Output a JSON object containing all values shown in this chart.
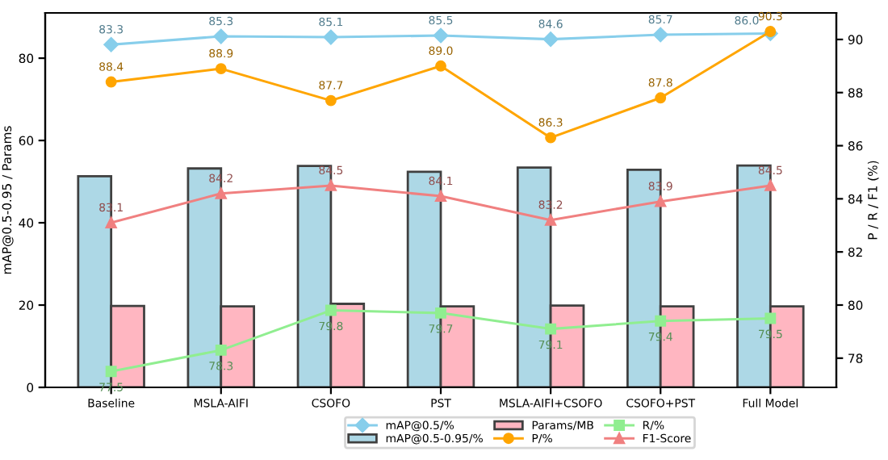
{
  "chart_data": {
    "type": "bar",
    "ylabel": "mAP@0.5-0.95 / Params",
    "y2label": "P / R / F1 (%)",
    "categories": [
      "Baseline",
      "MSLA-AIFI",
      "CSOFO",
      "PST",
      "MSLA-AIFI+CSOFO",
      "CSOFO+PST",
      "Full Model"
    ],
    "ylim": [
      0,
      91
    ],
    "yticks": [
      0,
      20,
      40,
      60,
      80
    ],
    "y2lim": [
      76.9,
      91
    ],
    "y2ticks": [
      78,
      80,
      82,
      84,
      86,
      88,
      90
    ],
    "grid": false,
    "legend": "bottom",
    "series": [
      {
        "name": "mAP@0.5/%",
        "type": "line",
        "marker": "diamond",
        "color": "#87ceeb",
        "values": [
          83.3,
          85.3,
          85.1,
          85.5,
          84.6,
          85.7,
          86.0
        ],
        "value_labels": [
          "83.3",
          "85.3",
          "85.1",
          "85.5",
          "84.6",
          "85.7",
          "86.0"
        ]
      },
      {
        "name": "mAP@0.5-0.95/%",
        "color": "#add8e6",
        "values": [
          51.3,
          53.2,
          53.8,
          52.4,
          53.4,
          52.9,
          53.9
        ]
      },
      {
        "name": "Params/MB",
        "color": "#ffb6c1",
        "values": [
          19.8,
          19.7,
          20.3,
          19.7,
          19.9,
          19.7,
          19.7
        ]
      },
      {
        "name": "P/%",
        "type": "line",
        "axis": "y2",
        "marker": "circle",
        "color": "#ffa500",
        "values": [
          88.4,
          88.9,
          87.7,
          89.0,
          86.3,
          87.8,
          90.3
        ],
        "value_labels": [
          "88.4",
          "88.9",
          "87.7",
          "89.0",
          "86.3",
          "87.8",
          "90.3"
        ]
      },
      {
        "name": "R/%",
        "type": "line",
        "axis": "y2",
        "marker": "square",
        "color": "#90ee90",
        "values": [
          77.5,
          78.3,
          79.8,
          79.7,
          79.1,
          79.4,
          79.5
        ],
        "value_labels": [
          "77.5",
          "78.3",
          "79.8",
          "79.7",
          "79.1",
          "79.4",
          "79.5"
        ]
      },
      {
        "name": "F1-Score",
        "type": "line",
        "axis": "y2",
        "marker": "triangle",
        "color": "#f08080",
        "values": [
          83.1,
          84.2,
          84.5,
          84.1,
          83.2,
          83.9,
          84.5
        ],
        "value_labels": [
          "83.1",
          "84.2",
          "84.5",
          "84.1",
          "83.2",
          "83.9",
          "84.5"
        ]
      }
    ]
  }
}
